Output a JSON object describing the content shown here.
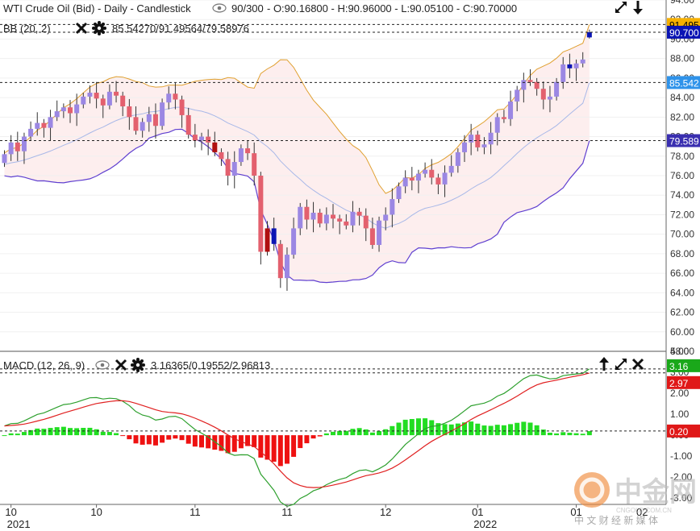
{
  "header": {
    "title": "WTI Crude Oil (Bid) - Daily - Candlestick",
    "bar_info": "90/300",
    "ohlc": "- O:90.16800 - H:90.96000 - L:90.05100 - C:90.70000"
  },
  "bb_indicator": {
    "label": "BB (20, 2)",
    "values": "85.54270/91.49564/79.58976"
  },
  "macd_indicator": {
    "label": "MACD (12, 26, 9)",
    "values": "3.16365/0.19552/2.96813"
  },
  "price_axis": {
    "ticks": [
      "94.00",
      "92.00",
      "90.00",
      "88.00",
      "86.00",
      "84.00",
      "82.00",
      "80.00",
      "78.00",
      "76.00",
      "74.00",
      "72.00",
      "70.00",
      "68.00",
      "66.00",
      "64.00",
      "62.00",
      "60.00",
      "58.00"
    ],
    "badges": [
      {
        "text": "91.495",
        "value": 91.495,
        "bg": "#f6b000",
        "fg": "#000000"
      },
      {
        "text": "90.700",
        "value": 90.7,
        "bg": "#0a14b4",
        "fg": "#ffffff"
      },
      {
        "text": "85.542",
        "value": 85.5427,
        "bg": "#2f93ea",
        "fg": "#ffffff"
      },
      {
        "text": "79.589",
        "value": 79.5898,
        "bg": "#3a2fb0",
        "fg": "#ffffff"
      }
    ]
  },
  "macd_axis": {
    "ticks": [
      "4.00",
      "3.00",
      "2.00",
      "1.00",
      "0.00",
      "-1.00",
      "-2.00",
      "-3.00"
    ],
    "badges": [
      {
        "text": "3.16",
        "value": 3.16,
        "bg": "#1aa81a",
        "fg": "#ffffff"
      },
      {
        "text": "2.97",
        "value": 2.97,
        "bg": "#e01818",
        "fg": "#ffffff"
      },
      {
        "text": "0.20",
        "value": 0.2,
        "bg": "#e01818",
        "fg": "#ffffff"
      }
    ]
  },
  "time_axis": {
    "labels": [
      {
        "text": "10",
        "index": 1
      },
      {
        "text": "10",
        "index": 14
      },
      {
        "text": "11",
        "index": 29
      },
      {
        "text": "11",
        "index": 43
      },
      {
        "text": "12",
        "index": 58
      },
      {
        "text": "01",
        "index": 72
      },
      {
        "text": "01",
        "index": 87
      }
    ],
    "year_labels": [
      {
        "text": "2021",
        "index": 1
      },
      {
        "text": "2022",
        "index": 72
      }
    ],
    "partial_label": "02"
  },
  "watermark": {
    "name": "中金网",
    "url": "CNGOLD.COM.CN",
    "tagline": "中 文 财 经 新 媒 体"
  },
  "colors": {
    "up_candle": "#9b87e3",
    "down_candle": "#e3606e",
    "up_strong": "#0a14b4",
    "down_strong": "#b01010",
    "bb_upper": "#e0a030",
    "bb_middle": "#a8b8e8",
    "bb_lower": "#6040d0",
    "bb_fill": "#fdeeee",
    "macd_line": "#2ea02e",
    "signal_line": "#e02020",
    "hist_pos": "#22dd22",
    "hist_neg": "#ee1111"
  },
  "chart_data": {
    "type": "candlestick",
    "instrument": "WTI Crude Oil (Bid)",
    "timeframe": "Daily",
    "ohlc_last": {
      "open": 90.168,
      "high": 90.96,
      "low": 90.051,
      "close": 90.7
    },
    "price_range": [
      58,
      94
    ],
    "closes": [
      78.2,
      79.4,
      78.5,
      80.0,
      80.8,
      81.4,
      80.9,
      82.0,
      82.6,
      83.0,
      82.4,
      83.3,
      84.1,
      84.5,
      83.9,
      83.2,
      84.6,
      84.2,
      83.1,
      82.0,
      80.6,
      81.5,
      82.3,
      81.1,
      83.5,
      84.4,
      83.8,
      82.2,
      80.2,
      79.6,
      80.0,
      79.4,
      78.4,
      77.7,
      76.0,
      77.4,
      78.8,
      78.3,
      76.0,
      68.2,
      70.6,
      69.0,
      65.5,
      67.9,
      70.6,
      72.8,
      71.5,
      72.2,
      71.1,
      72.0,
      71.6,
      71.3,
      70.9,
      72.3,
      71.9,
      70.6,
      68.9,
      71.4,
      72.0,
      73.6,
      74.9,
      75.8,
      75.5,
      76.2,
      76.6,
      75.8,
      75.1,
      76.3,
      77.0,
      78.4,
      79.4,
      80.2,
      78.9,
      79.2,
      80.4,
      82.0,
      81.8,
      83.6,
      84.8,
      85.8,
      85.6,
      84.9,
      83.8,
      84.1,
      85.6,
      87.4,
      87.0,
      87.5,
      87.9,
      90.7
    ],
    "bollinger": {
      "period": 20,
      "stddev": 2,
      "middle_last": 85.5427,
      "upper_last": 91.49564,
      "lower_last": 79.58976
    },
    "macd": {
      "fast": 12,
      "slow": 26,
      "signal": 9,
      "macd_last": 3.16365,
      "histogram_last": 0.19552,
      "signal_last": 2.96813,
      "range": [
        -3.3,
        4.0
      ]
    }
  }
}
